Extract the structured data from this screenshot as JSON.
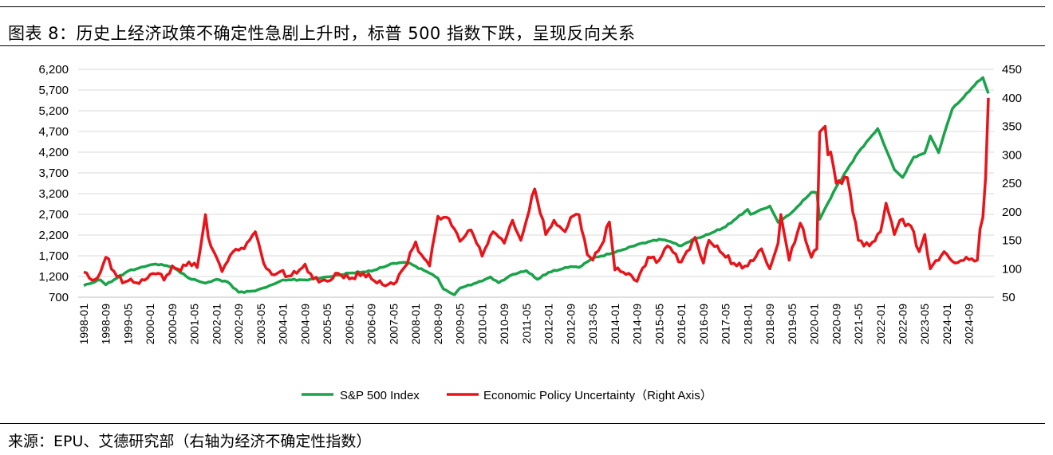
{
  "header": {
    "title": "图表 8：历史上经济政策不确定性急剧上升时，标普 500 指数下跌，呈现反向关系"
  },
  "footer": {
    "source": "来源：EPU、艾德研究部（右轴为经济不确定性指数）"
  },
  "colors": {
    "sp500": "#1aa34a",
    "epu": "#e8141a",
    "grid": "#d9d9d9"
  },
  "chart_data": {
    "type": "line",
    "title": "",
    "legend_position": "bottom",
    "x_start": "1998-01",
    "x_tick_labels": [
      "1998-01",
      "1998-09",
      "1999-05",
      "2000-01",
      "2000-09",
      "2001-05",
      "2002-01",
      "2002-09",
      "2003-05",
      "2004-01",
      "2004-09",
      "2005-05",
      "2006-01",
      "2006-09",
      "2007-05",
      "2008-01",
      "2008-09",
      "2009-05",
      "2010-01",
      "2010-09",
      "2011-05",
      "2012-01",
      "2012-09",
      "2013-05",
      "2014-01",
      "2014-09",
      "2015-05",
      "2016-01",
      "2016-09",
      "2017-05",
      "2018-01",
      "2018-09",
      "2019-05",
      "2020-01",
      "2020-09",
      "2021-05",
      "2022-01",
      "2022-09",
      "2023-05",
      "2024-01",
      "2024-09"
    ],
    "y_left": {
      "ticks": [
        700,
        1200,
        1700,
        2200,
        2700,
        3200,
        3700,
        4200,
        4700,
        5200,
        5700,
        6200
      ],
      "tick_labels": [
        "700",
        "1,200",
        "1,700",
        "2,200",
        "2,700",
        "3,200",
        "3,700",
        "4,200",
        "4,700",
        "5,200",
        "5,700",
        "6,200"
      ],
      "range": [
        700,
        6200
      ]
    },
    "y_right": {
      "ticks": [
        50,
        100,
        150,
        200,
        250,
        300,
        350,
        400,
        450
      ],
      "tick_labels": [
        "50",
        "100",
        "150",
        "200",
        "250",
        "300",
        "350",
        "400",
        "450"
      ],
      "range": [
        50,
        450
      ]
    },
    "grid": true,
    "series": [
      {
        "name": "S&P 500 Index",
        "axis": "left",
        "anchors": [
          [
            "1998-01",
            980
          ],
          [
            "1998-07",
            1120
          ],
          [
            "1998-09",
            1000
          ],
          [
            "1999-05",
            1330
          ],
          [
            "1999-12",
            1460
          ],
          [
            "2000-03",
            1500
          ],
          [
            "2000-09",
            1440
          ],
          [
            "2001-03",
            1160
          ],
          [
            "2001-09",
            1040
          ],
          [
            "2002-01",
            1130
          ],
          [
            "2002-05",
            1070
          ],
          [
            "2002-09",
            820
          ],
          [
            "2003-03",
            850
          ],
          [
            "2003-09",
            1000
          ],
          [
            "2004-01",
            1120
          ],
          [
            "2004-09",
            1120
          ],
          [
            "2005-05",
            1190
          ],
          [
            "2006-01",
            1280
          ],
          [
            "2006-09",
            1330
          ],
          [
            "2007-05",
            1520
          ],
          [
            "2007-10",
            1540
          ],
          [
            "2008-06",
            1280
          ],
          [
            "2008-09",
            1160
          ],
          [
            "2008-11",
            900
          ],
          [
            "2009-03",
            760
          ],
          [
            "2009-05",
            920
          ],
          [
            "2010-01",
            1090
          ],
          [
            "2010-04",
            1190
          ],
          [
            "2010-07",
            1050
          ],
          [
            "2010-12",
            1250
          ],
          [
            "2011-05",
            1340
          ],
          [
            "2011-09",
            1130
          ],
          [
            "2012-01",
            1300
          ],
          [
            "2012-09",
            1440
          ],
          [
            "2012-12",
            1420
          ],
          [
            "2013-05",
            1640
          ],
          [
            "2014-01",
            1780
          ],
          [
            "2014-09",
            1970
          ],
          [
            "2015-05",
            2100
          ],
          [
            "2015-08",
            2060
          ],
          [
            "2016-01",
            1940
          ],
          [
            "2016-05",
            2090
          ],
          [
            "2016-09",
            2170
          ],
          [
            "2017-05",
            2400
          ],
          [
            "2018-01",
            2820
          ],
          [
            "2018-02",
            2700
          ],
          [
            "2018-09",
            2900
          ],
          [
            "2018-12",
            2510
          ],
          [
            "2019-05",
            2750
          ],
          [
            "2019-12",
            3230
          ],
          [
            "2020-02",
            3220
          ],
          [
            "2020-03",
            2580
          ],
          [
            "2020-09",
            3360
          ],
          [
            "2021-05",
            4200
          ],
          [
            "2021-12",
            4770
          ],
          [
            "2022-06",
            3780
          ],
          [
            "2022-09",
            3590
          ],
          [
            "2023-01",
            4080
          ],
          [
            "2023-05",
            4180
          ],
          [
            "2023-07",
            4590
          ],
          [
            "2023-10",
            4190
          ],
          [
            "2024-01",
            4850
          ],
          [
            "2024-03",
            5250
          ],
          [
            "2024-07",
            5520
          ],
          [
            "2024-12",
            5900
          ],
          [
            "2025-02",
            6000
          ],
          [
            "2025-04",
            5620
          ]
        ]
      },
      {
        "name": "Economic Policy Uncertainty (Right Axis)",
        "axis": "right",
        "anchors": [
          [
            "1998-01",
            94
          ],
          [
            "1998-04",
            80
          ],
          [
            "1998-06",
            84
          ],
          [
            "1998-09",
            120
          ],
          [
            "1998-12",
            95
          ],
          [
            "1999-03",
            75
          ],
          [
            "1999-06",
            82
          ],
          [
            "1999-09",
            74
          ],
          [
            "2000-01",
            90
          ],
          [
            "2000-04",
            92
          ],
          [
            "2000-06",
            80
          ],
          [
            "2000-09",
            105
          ],
          [
            "2000-12",
            96
          ],
          [
            "2001-03",
            112
          ],
          [
            "2001-06",
            102
          ],
          [
            "2001-09",
            195
          ],
          [
            "2001-10",
            155
          ],
          [
            "2001-12",
            130
          ],
          [
            "2002-03",
            95
          ],
          [
            "2002-07",
            130
          ],
          [
            "2002-11",
            135
          ],
          [
            "2003-03",
            165
          ],
          [
            "2003-06",
            110
          ],
          [
            "2003-09",
            90
          ],
          [
            "2003-12",
            95
          ],
          [
            "2004-03",
            87
          ],
          [
            "2004-06",
            92
          ],
          [
            "2004-09",
            108
          ],
          [
            "2004-12",
            82
          ],
          [
            "2005-05",
            78
          ],
          [
            "2005-09",
            92
          ],
          [
            "2006-01",
            82
          ],
          [
            "2006-06",
            92
          ],
          [
            "2006-09",
            82
          ],
          [
            "2007-01",
            72
          ],
          [
            "2007-05",
            73
          ],
          [
            "2007-09",
            103
          ],
          [
            "2008-01",
            147
          ],
          [
            "2008-03",
            125
          ],
          [
            "2008-06",
            105
          ],
          [
            "2008-09",
            192
          ],
          [
            "2008-11",
            190
          ],
          [
            "2009-01",
            188
          ],
          [
            "2009-05",
            148
          ],
          [
            "2009-09",
            168
          ],
          [
            "2010-01",
            122
          ],
          [
            "2010-05",
            165
          ],
          [
            "2010-09",
            145
          ],
          [
            "2010-12",
            185
          ],
          [
            "2011-03",
            150
          ],
          [
            "2011-08",
            240
          ],
          [
            "2011-12",
            160
          ],
          [
            "2012-03",
            185
          ],
          [
            "2012-07",
            165
          ],
          [
            "2012-09",
            190
          ],
          [
            "2012-12",
            195
          ],
          [
            "2013-03",
            125
          ],
          [
            "2013-05",
            115
          ],
          [
            "2013-08",
            140
          ],
          [
            "2013-11",
            182
          ],
          [
            "2014-01",
            98
          ],
          [
            "2014-06",
            92
          ],
          [
            "2014-09",
            78
          ],
          [
            "2015-01",
            120
          ],
          [
            "2015-05",
            115
          ],
          [
            "2015-08",
            140
          ],
          [
            "2016-01",
            112
          ],
          [
            "2016-06",
            155
          ],
          [
            "2016-09",
            110
          ],
          [
            "2016-11",
            150
          ],
          [
            "2017-03",
            130
          ],
          [
            "2017-09",
            105
          ],
          [
            "2018-01",
            105
          ],
          [
            "2018-06",
            135
          ],
          [
            "2018-09",
            100
          ],
          [
            "2018-12",
            145
          ],
          [
            "2019-01",
            195
          ],
          [
            "2019-04",
            115
          ],
          [
            "2019-08",
            180
          ],
          [
            "2019-12",
            120
          ],
          [
            "2020-02",
            135
          ],
          [
            "2020-03",
            340
          ],
          [
            "2020-05",
            350
          ],
          [
            "2020-06",
            300
          ],
          [
            "2020-07",
            305
          ],
          [
            "2020-09",
            250
          ],
          [
            "2021-01",
            260
          ],
          [
            "2021-05",
            150
          ],
          [
            "2021-09",
            140
          ],
          [
            "2022-01",
            165
          ],
          [
            "2022-03",
            215
          ],
          [
            "2022-06",
            160
          ],
          [
            "2022-08",
            185
          ],
          [
            "2022-12",
            175
          ],
          [
            "2023-03",
            130
          ],
          [
            "2023-05",
            160
          ],
          [
            "2023-07",
            100
          ],
          [
            "2023-12",
            130
          ],
          [
            "2024-04",
            110
          ],
          [
            "2024-08",
            120
          ],
          [
            "2024-12",
            115
          ],
          [
            "2025-01",
            170
          ],
          [
            "2025-02",
            190
          ],
          [
            "2025-03",
            260
          ],
          [
            "2025-04",
            400
          ]
        ]
      }
    ]
  },
  "legend": {
    "sp500_label": "S&P 500 Index",
    "epu_label": "Economic Policy  Uncertainty（Right Axis）"
  }
}
